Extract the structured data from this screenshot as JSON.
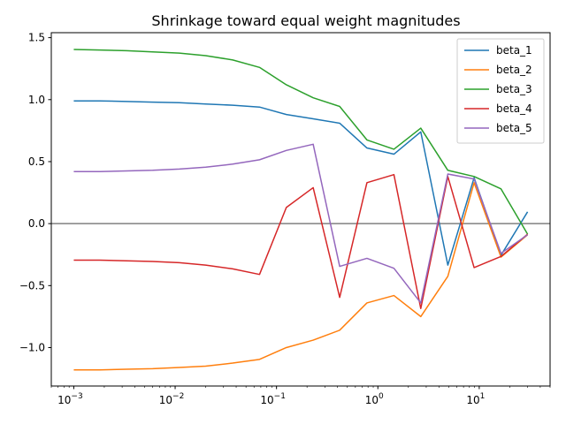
{
  "chart_data": {
    "type": "line",
    "title": "Shrinkage toward equal weight magnitudes",
    "xlabel": "",
    "ylabel": "",
    "xscale": "log",
    "xlim": [
      0.0006,
      50
    ],
    "ylim": [
      -1.31,
      1.54
    ],
    "grid": false,
    "legend_position": "top-right",
    "x_ticks": [
      {
        "value": 0.001,
        "base": "10",
        "exp": "−3"
      },
      {
        "value": 0.01,
        "base": "10",
        "exp": "−2"
      },
      {
        "value": 0.1,
        "base": "10",
        "exp": "−1"
      },
      {
        "value": 1,
        "base": "10",
        "exp": "0"
      },
      {
        "value": 10,
        "base": "10",
        "exp": "1"
      }
    ],
    "y_ticks": [
      {
        "value": 1.5,
        "label": "1.5"
      },
      {
        "value": 1.0,
        "label": "1.0"
      },
      {
        "value": 0.5,
        "label": "0.5"
      },
      {
        "value": 0.0,
        "label": "0.0"
      },
      {
        "value": -0.5,
        "label": "−0.5"
      },
      {
        "value": -1.0,
        "label": "−1.0"
      }
    ],
    "reference_line": {
      "y": 0,
      "color": "#808080"
    },
    "x": [
      0.001,
      0.0018,
      0.0033,
      0.006,
      0.011,
      0.02,
      0.037,
      0.068,
      0.125,
      0.23,
      0.42,
      0.78,
      1.44,
      2.65,
      4.9,
      8.9,
      16.4,
      30
    ],
    "series": [
      {
        "name": "beta_1",
        "color": "#1f77b4",
        "values": [
          0.99,
          0.99,
          0.985,
          0.98,
          0.975,
          0.965,
          0.955,
          0.94,
          0.88,
          0.845,
          0.81,
          0.61,
          0.56,
          0.74,
          -0.335,
          0.37,
          -0.255,
          0.095
        ]
      },
      {
        "name": "beta_2",
        "color": "#ff7f0e",
        "values": [
          -1.18,
          -1.18,
          -1.175,
          -1.17,
          -1.16,
          -1.15,
          -1.125,
          -1.095,
          -1.0,
          -0.94,
          -0.86,
          -0.64,
          -0.58,
          -0.75,
          -0.425,
          0.33,
          -0.27,
          -0.09
        ]
      },
      {
        "name": "beta_3",
        "color": "#2ca02c",
        "values": [
          1.405,
          1.4,
          1.395,
          1.385,
          1.375,
          1.355,
          1.32,
          1.26,
          1.12,
          1.015,
          0.945,
          0.675,
          0.6,
          0.77,
          0.43,
          0.38,
          0.28,
          -0.085
        ]
      },
      {
        "name": "beta_4",
        "color": "#d62728",
        "values": [
          -0.295,
          -0.295,
          -0.3,
          -0.305,
          -0.315,
          -0.335,
          -0.365,
          -0.41,
          0.13,
          0.29,
          -0.595,
          0.33,
          0.395,
          -0.685,
          0.38,
          -0.355,
          -0.265,
          -0.085
        ]
      },
      {
        "name": "beta_5",
        "color": "#9467bd",
        "values": [
          0.42,
          0.42,
          0.425,
          0.43,
          0.44,
          0.455,
          0.48,
          0.515,
          0.59,
          0.64,
          -0.345,
          -0.28,
          -0.36,
          -0.64,
          0.4,
          0.36,
          -0.24,
          -0.09
        ]
      }
    ]
  }
}
